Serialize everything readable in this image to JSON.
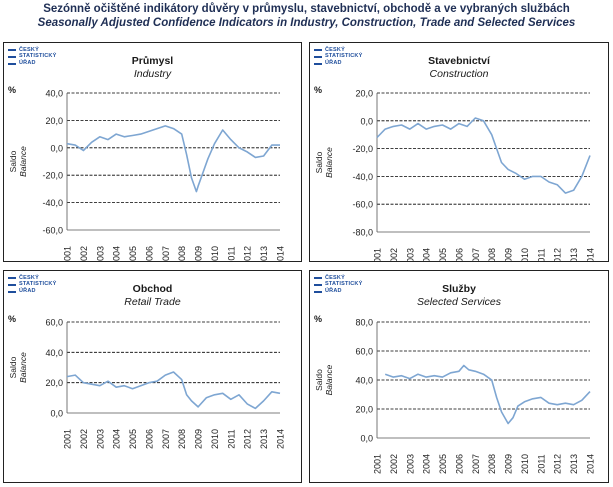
{
  "header": {
    "line1": "Sezónně očištěné indikátory důvěry v průmyslu, stavebnictví, obchodě a ve vybraných službách",
    "line2": "Seasonally Adjusted Confidence Indicators in Industry, Construction, Trade and Selected Services"
  },
  "logo_lines": [
    "ČESKÝ",
    "STATISTICKÝ",
    "ÚŘAD"
  ],
  "colors": {
    "line": "#7ea6d2",
    "grid": "#000000",
    "logo": "#1f4e9c"
  },
  "chart_data": [
    {
      "type": "line",
      "title": "Průmysl",
      "subtitle": "Industry",
      "unit": "%",
      "ylabel": "Saldo",
      "ylabel2": "Balance",
      "ylim": [
        -60,
        40
      ],
      "yticks": [
        "-60,0",
        "-40,0",
        "-20,0",
        "0,0",
        "20,0",
        "40,0"
      ],
      "xticks": [
        "2001",
        "2002",
        "2003",
        "2004",
        "2005",
        "2006",
        "2007",
        "2008",
        "2009",
        "2010",
        "2011",
        "2012",
        "2013",
        "2014"
      ],
      "x": [
        2001.0,
        2001.5,
        2002.0,
        2002.5,
        2003.0,
        2003.5,
        2004.0,
        2004.5,
        2005.0,
        2005.5,
        2006.0,
        2006.5,
        2007.0,
        2007.5,
        2008.0,
        2008.3,
        2008.6,
        2008.9,
        2009.0,
        2009.3,
        2009.6,
        2010.0,
        2010.5,
        2011.0,
        2011.5,
        2012.0,
        2012.5,
        2013.0,
        2013.5,
        2014.0
      ],
      "values": [
        3,
        2,
        -2,
        4,
        8,
        6,
        10,
        8,
        9,
        10,
        12,
        14,
        16,
        14,
        10,
        -5,
        -22,
        -32,
        -28,
        -18,
        -8,
        3,
        13,
        6,
        0,
        -3,
        -7,
        -6,
        2,
        2
      ]
    },
    {
      "type": "line",
      "title": "Stavebnictví",
      "subtitle": "Construction",
      "unit": "%",
      "ylabel": "Saldo",
      "ylabel2": "Balance",
      "ylim": [
        -80,
        20
      ],
      "yticks": [
        "-80,0",
        "-60,0",
        "-40,0",
        "-20,0",
        "0,0",
        "20,0"
      ],
      "xticks": [
        "2001",
        "2002",
        "2003",
        "2004",
        "2005",
        "2006",
        "2007",
        "2008",
        "2009",
        "2010",
        "2011",
        "2012",
        "2013",
        "2014"
      ],
      "x": [
        2001.0,
        2001.5,
        2002.0,
        2002.5,
        2003.0,
        2003.5,
        2004.0,
        2004.5,
        2005.0,
        2005.5,
        2006.0,
        2006.5,
        2007.0,
        2007.5,
        2008.0,
        2008.3,
        2008.6,
        2009.0,
        2009.5,
        2010.0,
        2010.5,
        2011.0,
        2011.5,
        2012.0,
        2012.5,
        2013.0,
        2013.5,
        2014.0
      ],
      "values": [
        -12,
        -6,
        -4,
        -3,
        -6,
        -2,
        -6,
        -4,
        -3,
        -6,
        -2,
        -4,
        2,
        0,
        -10,
        -20,
        -30,
        -35,
        -38,
        -42,
        -40,
        -40,
        -44,
        -46,
        -52,
        -50,
        -40,
        -25
      ]
    },
    {
      "type": "line",
      "title": "Obchod",
      "subtitle": "Retail Trade",
      "unit": "%",
      "ylabel": "Saldo",
      "ylabel2": "Balance",
      "ylim": [
        0,
        60
      ],
      "yticks": [
        "0,0",
        "20,0",
        "40,0",
        "60,0"
      ],
      "xticks": [
        "2001",
        "2002",
        "2003",
        "2004",
        "2005",
        "2006",
        "2007",
        "2008",
        "2009",
        "2010",
        "2011",
        "2012",
        "2013",
        "2014"
      ],
      "x": [
        2001.0,
        2001.5,
        2002.0,
        2002.5,
        2003.0,
        2003.5,
        2004.0,
        2004.5,
        2005.0,
        2005.5,
        2006.0,
        2006.5,
        2007.0,
        2007.5,
        2008.0,
        2008.3,
        2008.6,
        2009.0,
        2009.5,
        2010.0,
        2010.5,
        2011.0,
        2011.5,
        2012.0,
        2012.5,
        2013.0,
        2013.5,
        2014.0
      ],
      "values": [
        24,
        25,
        20,
        19,
        18,
        21,
        17,
        18,
        16,
        18,
        20,
        21,
        25,
        27,
        22,
        12,
        8,
        4,
        10,
        12,
        13,
        9,
        12,
        6,
        3,
        8,
        14,
        13
      ]
    },
    {
      "type": "line",
      "title": "Služby",
      "subtitle": "Selected Services",
      "unit": "%",
      "ylabel": "Saldo",
      "ylabel2": "Balance",
      "ylim": [
        0,
        80
      ],
      "yticks": [
        "0,0",
        "20,0",
        "40,0",
        "60,0",
        "80,0"
      ],
      "xticks": [
        "2001",
        "2002",
        "2003",
        "2004",
        "2005",
        "2006",
        "2007",
        "2008",
        "2009",
        "2010",
        "2011",
        "2012",
        "2013",
        "2014"
      ],
      "x": [
        2001.5,
        2002.0,
        2002.5,
        2003.0,
        2003.5,
        2004.0,
        2004.5,
        2005.0,
        2005.5,
        2006.0,
        2006.3,
        2006.6,
        2007.0,
        2007.5,
        2008.0,
        2008.3,
        2008.6,
        2009.0,
        2009.3,
        2009.6,
        2010.0,
        2010.5,
        2011.0,
        2011.5,
        2012.0,
        2012.5,
        2013.0,
        2013.5,
        2014.0
      ],
      "values": [
        44,
        42,
        43,
        41,
        44,
        42,
        43,
        42,
        45,
        46,
        50,
        47,
        46,
        44,
        40,
        28,
        18,
        10,
        14,
        22,
        25,
        27,
        28,
        24,
        23,
        24,
        23,
        26,
        32
      ]
    }
  ]
}
